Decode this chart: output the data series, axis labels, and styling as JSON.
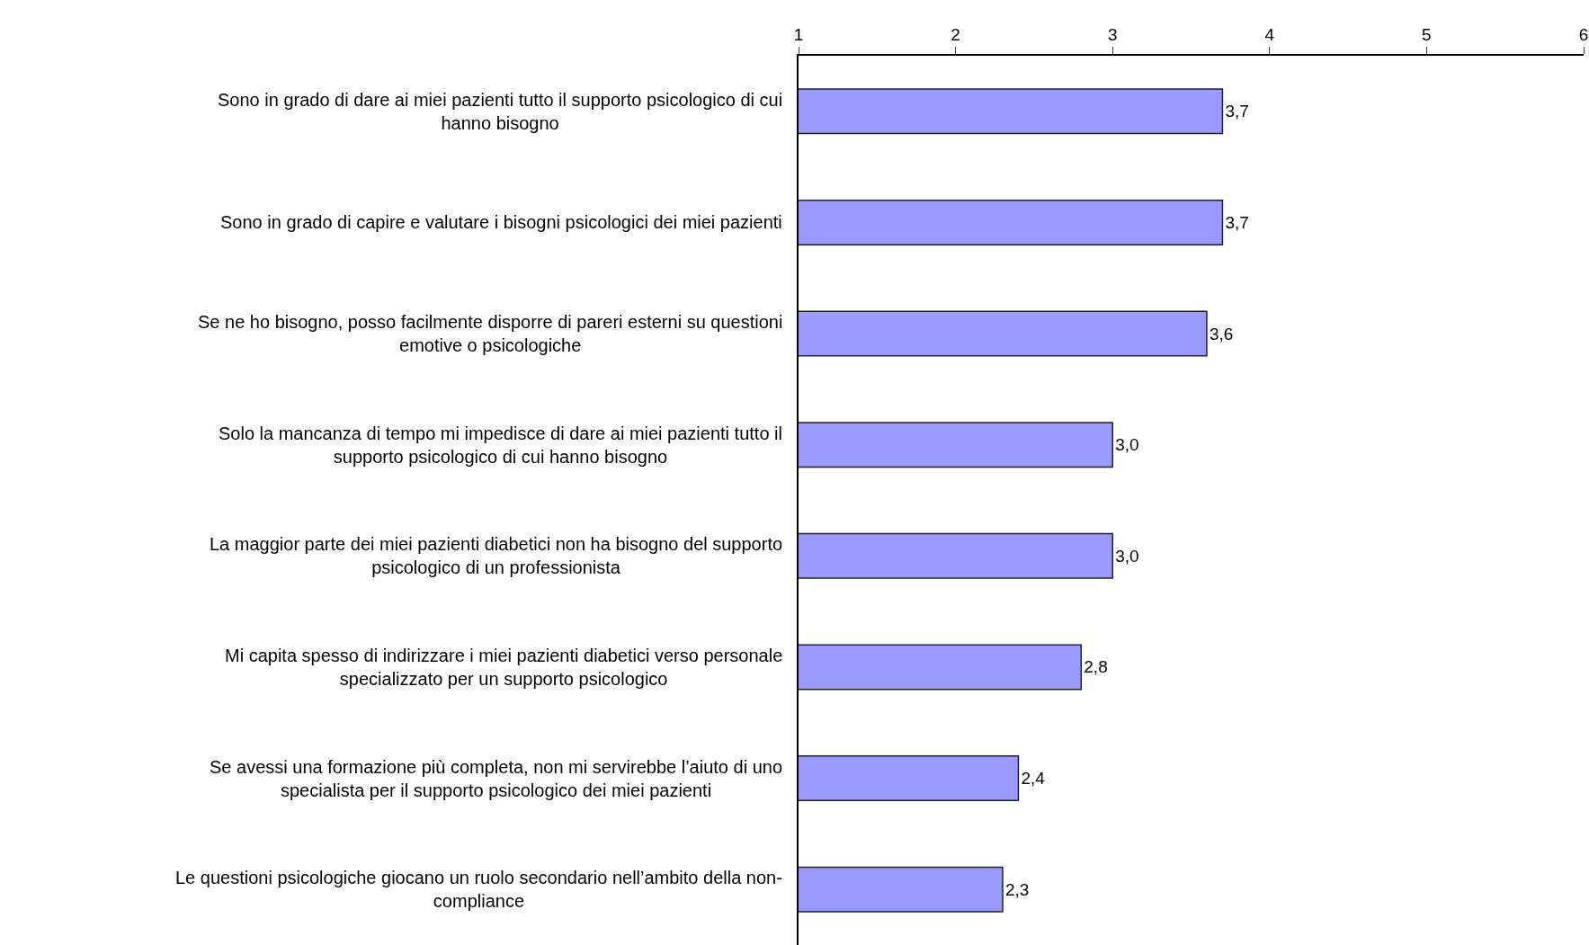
{
  "chart_data": {
    "type": "bar",
    "orientation": "horizontal",
    "categories": [
      "Sono in grado di dare ai miei pazienti tutto il supporto psicologico di cui hanno bisogno",
      "Sono in grado di capire e valutare i bisogni psicologici dei miei pazienti",
      "Se ne ho bisogno, posso facilmente disporre di pareri esterni su questioni emotive o psicologiche",
      "Solo la mancanza di tempo mi impedisce di dare ai miei pazienti tutto il supporto psicologico di cui hanno bisogno",
      "La maggior parte dei miei pazienti diabetici non ha bisogno del supporto psicologico di un professionista",
      "Mi capita spesso di indirizzare i miei pazienti diabetici verso personale specializzato per un supporto psicologico",
      "Se avessi una formazione più completa, non mi servirebbe l’aiuto di uno specialista per il supporto psicologico dei miei pazienti",
      "Le questioni psicologiche giocano un ruolo secondario nell’ambito della non-compliance"
    ],
    "values": [
      3.7,
      3.7,
      3.6,
      3.0,
      3.0,
      2.8,
      2.4,
      2.3
    ],
    "value_labels": [
      "3,7",
      "3,7",
      "3,6",
      "3,0",
      "3,0",
      "2,8",
      "2,4",
      "2,3"
    ],
    "color": "#9999ff",
    "xlim": [
      1,
      6
    ],
    "xticks": [
      1,
      2,
      3,
      4,
      5,
      6
    ],
    "legend": false
  }
}
